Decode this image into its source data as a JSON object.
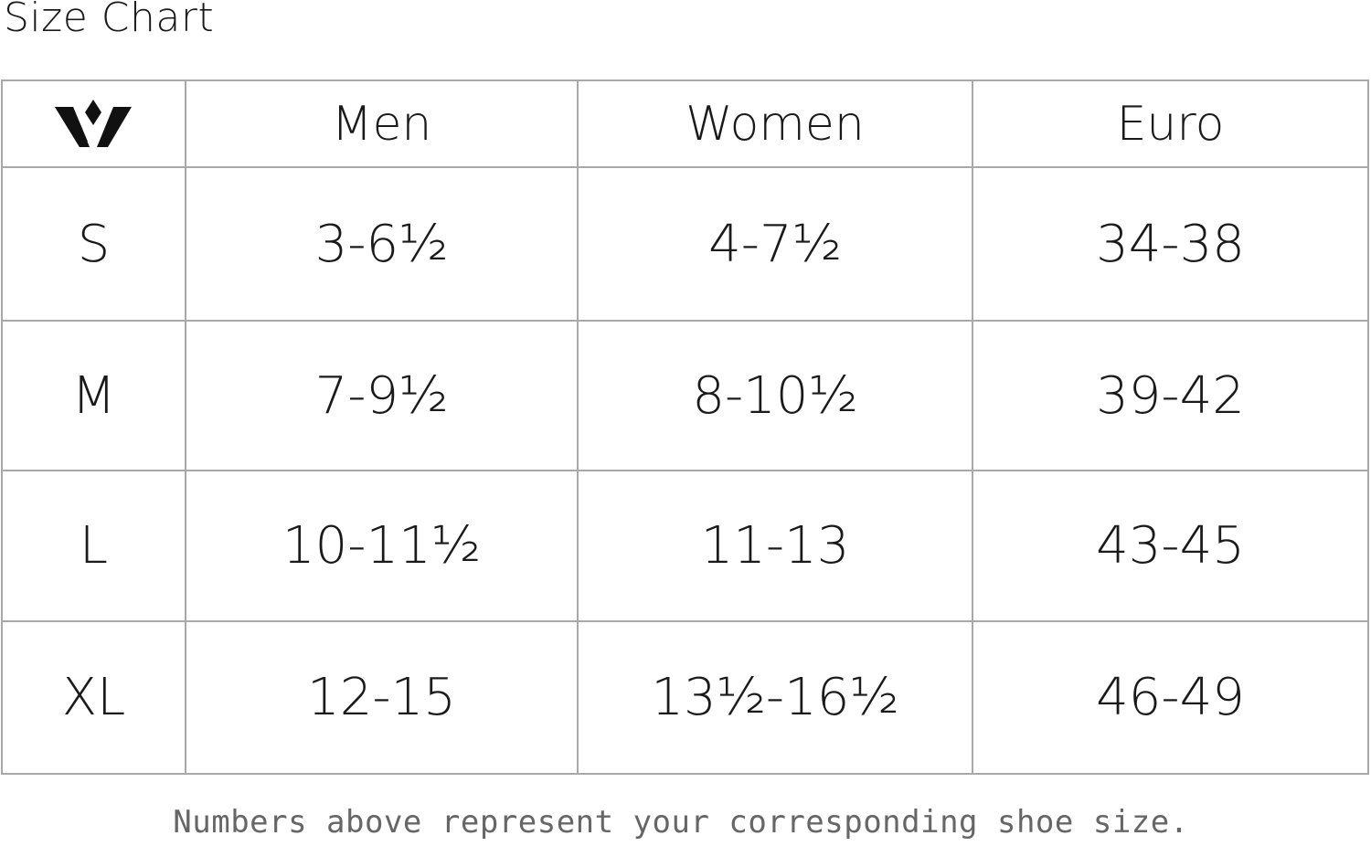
{
  "title": "Size Chart",
  "logo": {
    "name": "brand-logo",
    "text": ""
  },
  "table": {
    "headers": [
      "Men",
      "Women",
      "Euro"
    ],
    "rows": [
      {
        "size": "S",
        "men": "3-6½",
        "women": "4-7½",
        "euro": "34-38"
      },
      {
        "size": "M",
        "men": "7-9½",
        "women": "8-10½",
        "euro": "39-42"
      },
      {
        "size": "L",
        "men": "10-11½",
        "women": "11-13",
        "euro": "43-45"
      },
      {
        "size": "XL",
        "men": "12-15",
        "women": "13½-16½",
        "euro": "46-49"
      }
    ]
  },
  "note": "Numbers above represent your corresponding shoe size.",
  "colors": {
    "border": "#a8a8a8",
    "text": "#1a1a1a",
    "note": "#666666"
  }
}
